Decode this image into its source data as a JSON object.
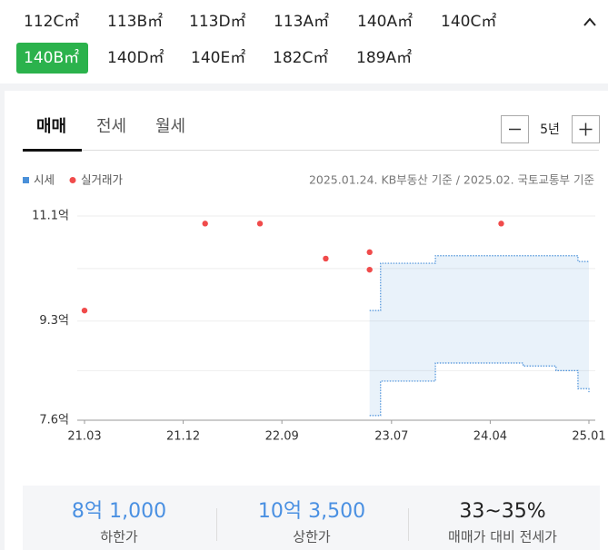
{
  "sizes": [
    "112C㎡",
    "113B㎡",
    "113D㎡",
    "113A㎡",
    "140A㎡",
    "140C㎡",
    "140B㎡",
    "140D㎡",
    "140E㎡",
    "182C㎡",
    "189A㎡"
  ],
  "tabs": [
    "매매",
    "전세",
    "월세"
  ],
  "period": "5년",
  "chart": {
    "type": "scatter",
    "note": "2025.01.24. KB부동산 기준 / 2025.02. 국토교통부 기준",
    "xlim": [
      "21.03",
      "25.01"
    ],
    "xticks": [
      "21.03",
      "21.12",
      "22.09",
      "23.07",
      "24.04",
      "25.01"
    ],
    "ylim": [
      7.6,
      11.1
    ],
    "yticks": [
      {
        "value": 11.1,
        "label": "11.1억"
      },
      {
        "value": 9.3,
        "label": "9.3억"
      },
      {
        "value": 7.6,
        "label": "7.6억"
      }
    ],
    "grid": true,
    "series": [
      {
        "name": "시세",
        "color": "#4a90d9",
        "x": [
          "23.05",
          "23.06",
          "23.07",
          "23.10",
          "23.11",
          "24.07",
          "24.10",
          "24.12",
          "25.01"
        ],
        "upper": [
          9.48,
          10.29,
          10.29,
          10.29,
          10.42,
          10.42,
          10.42,
          10.32,
          10.32
        ],
        "lower": [
          7.68,
          8.27,
          8.27,
          8.27,
          8.58,
          8.53,
          8.45,
          8.14,
          8.08
        ]
      },
      {
        "name": "실거래가",
        "color": "#f04b4b",
        "x": [
          "21.03",
          "22.02",
          "22.07",
          "23.01",
          "23.05",
          "23.05",
          "24.05"
        ],
        "values": [
          9.48,
          10.97,
          10.97,
          10.37,
          10.48,
          10.18,
          10.97
        ]
      }
    ]
  },
  "summary": [
    {
      "value": "8억 1,000",
      "label": "하한가"
    },
    {
      "value": "10억 3,500",
      "label": "상한가"
    },
    {
      "value": "33~35%",
      "label": "매매가 대비 전세가"
    }
  ]
}
